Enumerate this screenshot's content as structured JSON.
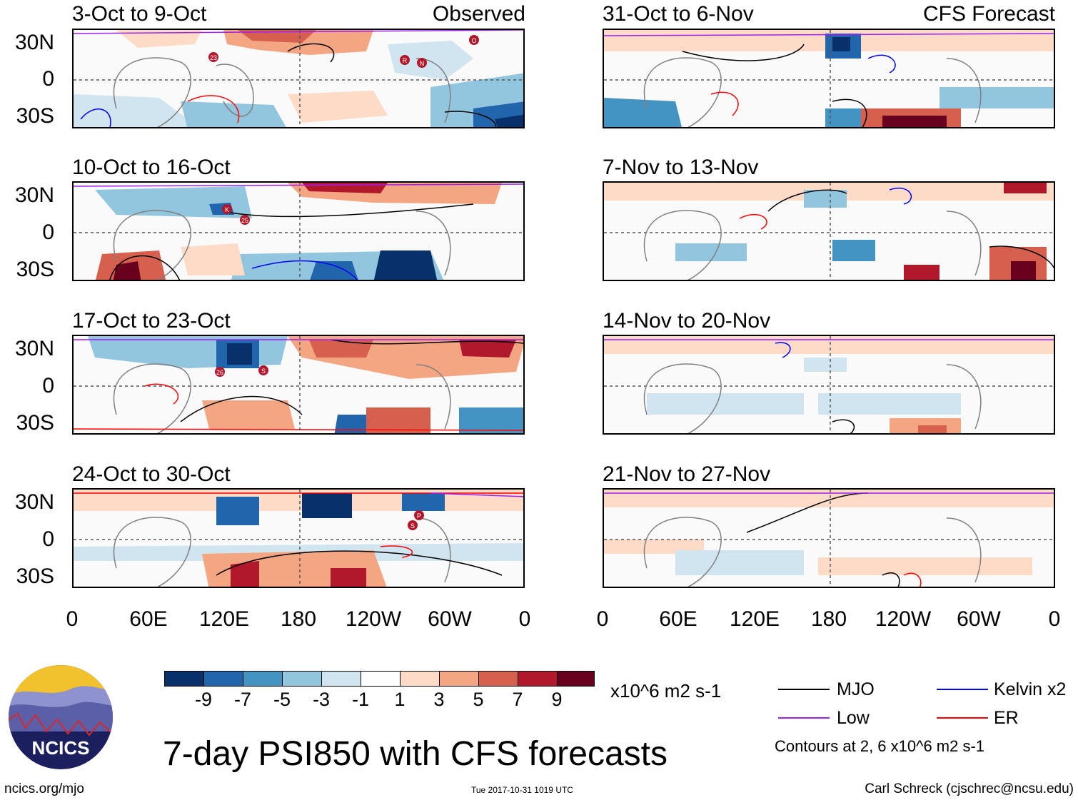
{
  "figure": {
    "title": "7-day PSI850 with CFS forecasts",
    "observed_label": "Observed",
    "forecast_label": "CFS Forecast",
    "units": "x10^6 m2 s-1"
  },
  "panels": {
    "observed": [
      {
        "period": "3-Oct to 9-Oct"
      },
      {
        "period": "10-Oct to 16-Oct"
      },
      {
        "period": "17-Oct to 23-Oct"
      },
      {
        "period": "24-Oct to 30-Oct"
      }
    ],
    "forecast": [
      {
        "period": "31-Oct to 6-Nov"
      },
      {
        "period": "7-Nov to 13-Nov"
      },
      {
        "period": "14-Nov to 20-Nov"
      },
      {
        "period": "21-Nov to 27-Nov"
      }
    ]
  },
  "axes": {
    "lat_labels": [
      "30N",
      "0",
      "30S"
    ],
    "lon_labels": [
      "0",
      "60E",
      "120E",
      "180",
      "120W",
      "60W",
      "0"
    ]
  },
  "colorbar": {
    "ticks": [
      "-9",
      "-7",
      "-5",
      "-3",
      "-1",
      "1",
      "3",
      "5",
      "7",
      "9"
    ],
    "colors": [
      "#08306b",
      "#2166ac",
      "#4393c3",
      "#92c5de",
      "#d1e5f0",
      "#ffffff",
      "#fddbc7",
      "#f4a582",
      "#d6604d",
      "#b2182b",
      "#67001f"
    ]
  },
  "legend": {
    "mjo": {
      "label": "MJO",
      "color": "#000000"
    },
    "kelvin": {
      "label": "Kelvin x2",
      "color": "#0000ff"
    },
    "low": {
      "label": "Low",
      "color": "#a020f0"
    },
    "er": {
      "label": "ER",
      "color": "#ff0000"
    },
    "contours_note": "Contours at 2, 6 x10^6 m2 s-1"
  },
  "storm_markers": {
    "panel1": [
      "23",
      "R",
      "N",
      "O"
    ],
    "panel2": [
      "K",
      "25"
    ],
    "panel3": [
      "26",
      "S"
    ],
    "panel4": [
      "P",
      "S"
    ]
  },
  "logo": {
    "text": "NCICS"
  },
  "footer": {
    "url": "ncics.org/mjo",
    "timestamp": "Tue 2017-10-31 1019 UTC",
    "credit": "Carl Schreck (cjschrec@ncsu.edu)"
  }
}
